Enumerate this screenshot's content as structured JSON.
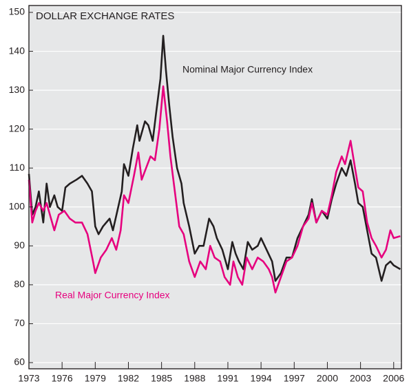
{
  "chart_data": {
    "type": "line",
    "title": "DOLLAR EXCHANGE RATES",
    "annotations": [
      "Nominal Major Currency Index",
      "Real Major Currency Index"
    ],
    "xlim": [
      1973,
      2006.7
    ],
    "xticks": [
      1973,
      1976,
      1979,
      1982,
      1985,
      1988,
      1991,
      1994,
      1997,
      2000,
      2003,
      2006
    ],
    "ylim": [
      60,
      150
    ],
    "yticks": [
      60,
      70,
      80,
      90,
      100,
      110,
      120,
      130,
      140,
      150
    ],
    "grid": true,
    "series": [
      {
        "name": "Nominal Major Currency Index",
        "color": "#231f20",
        "x": [
          1973.0,
          1973.3,
          1973.6,
          1973.9,
          1974.3,
          1974.6,
          1974.9,
          1975.3,
          1975.6,
          1976.0,
          1976.3,
          1976.7,
          1977.3,
          1977.8,
          1978.3,
          1978.7,
          1979.0,
          1979.3,
          1979.7,
          1980.0,
          1980.3,
          1980.6,
          1981.0,
          1981.4,
          1981.6,
          1982.0,
          1982.4,
          1982.8,
          1983.0,
          1983.5,
          1983.8,
          1984.2,
          1984.5,
          1984.9,
          1985.15,
          1985.4,
          1985.7,
          1986.0,
          1986.4,
          1986.8,
          1987.0,
          1987.5,
          1988.0,
          1988.4,
          1988.8,
          1989.3,
          1989.7,
          1990.0,
          1990.5,
          1991.0,
          1991.4,
          1991.7,
          1992.0,
          1992.4,
          1992.8,
          1993.2,
          1993.7,
          1994.0,
          1994.5,
          1995.0,
          1995.3,
          1995.8,
          1996.3,
          1996.8,
          1997.3,
          1997.8,
          1998.3,
          1998.6,
          1999.0,
          1999.5,
          2000.0,
          2000.4,
          2000.8,
          2001.3,
          2001.7,
          2002.1,
          2002.5,
          2002.8,
          2003.2,
          2003.6,
          2004.0,
          2004.4,
          2004.9,
          2005.3,
          2005.7,
          2006.0,
          2006.6
        ],
        "values": [
          108.5,
          98,
          100,
          104,
          96,
          106,
          100,
          103,
          100,
          99,
          105,
          106,
          107,
          108,
          106,
          104,
          95,
          93,
          95,
          96,
          97,
          94,
          99,
          104,
          111,
          108,
          115,
          121,
          117,
          122,
          121,
          117,
          124,
          133,
          144,
          135,
          126,
          118,
          110,
          106,
          101,
          95,
          88,
          90,
          90,
          97,
          95,
          92,
          89,
          84,
          91,
          88,
          86,
          84,
          91,
          89,
          90,
          92,
          89,
          86,
          81,
          83,
          87,
          87,
          92,
          95,
          98,
          102,
          96,
          99,
          97,
          102,
          106,
          110,
          108,
          112,
          106,
          101,
          100,
          94,
          88,
          87,
          81,
          85,
          86,
          85,
          84
        ]
      },
      {
        "name": "Real Major Currency Index",
        "color": "#e6007e",
        "x": [
          1973.0,
          1973.3,
          1973.6,
          1973.9,
          1974.3,
          1974.6,
          1975.0,
          1975.3,
          1975.7,
          1976.2,
          1976.7,
          1977.2,
          1977.8,
          1978.3,
          1978.8,
          1979.0,
          1979.5,
          1980.0,
          1980.5,
          1980.9,
          1981.3,
          1981.6,
          1982.0,
          1982.5,
          1982.9,
          1983.2,
          1983.6,
          1984.0,
          1984.4,
          1984.8,
          1985.15,
          1985.5,
          1985.8,
          1986.2,
          1986.6,
          1987.0,
          1987.5,
          1988.0,
          1988.5,
          1989.0,
          1989.4,
          1989.8,
          1990.3,
          1990.7,
          1991.2,
          1991.5,
          1991.9,
          1992.3,
          1992.7,
          1993.2,
          1993.7,
          1994.2,
          1994.7,
          1995.0,
          1995.3,
          1995.8,
          1996.3,
          1996.8,
          1997.3,
          1997.8,
          1998.3,
          1998.6,
          1999.0,
          1999.5,
          2000.0,
          2000.4,
          2000.8,
          2001.3,
          2001.6,
          2002.1,
          2002.5,
          2002.8,
          2003.2,
          2003.6,
          2004.0,
          2004.4,
          2004.9,
          2005.3,
          2005.7,
          2006.0,
          2006.6
        ],
        "values": [
          107,
          96,
          99,
          101,
          99,
          101,
          97,
          94,
          98,
          99,
          97,
          96,
          96,
          93,
          86,
          83,
          87,
          89,
          92,
          89,
          94,
          103,
          101,
          108,
          114,
          107,
          110,
          113,
          112,
          120,
          131,
          122,
          113,
          104,
          95,
          93,
          86,
          82,
          86,
          84,
          90,
          87,
          86,
          82,
          80,
          86,
          82,
          80,
          87,
          84,
          87,
          86,
          84,
          82,
          78,
          82,
          86,
          87,
          90,
          95,
          97,
          101,
          96,
          99,
          98,
          103,
          109,
          113,
          111,
          117,
          110,
          105,
          104,
          96,
          92,
          90,
          87,
          89,
          94,
          92,
          92.5
        ]
      }
    ]
  }
}
